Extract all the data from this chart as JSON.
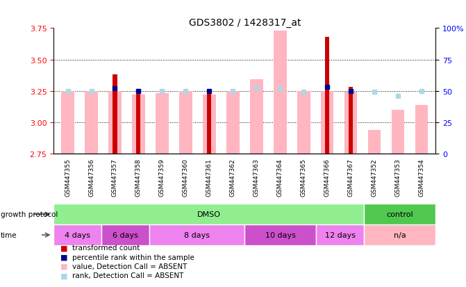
{
  "title": "GDS3802 / 1428317_at",
  "samples": [
    "GSM447355",
    "GSM447356",
    "GSM447357",
    "GSM447358",
    "GSM447359",
    "GSM447360",
    "GSM447361",
    "GSM447362",
    "GSM447363",
    "GSM447364",
    "GSM447365",
    "GSM447366",
    "GSM447367",
    "GSM447352",
    "GSM447353",
    "GSM447354"
  ],
  "ylim_left": [
    2.75,
    3.75
  ],
  "ylim_right": [
    0,
    100
  ],
  "yticks_left": [
    2.75,
    3.0,
    3.25,
    3.5,
    3.75
  ],
  "yticks_right": [
    0,
    25,
    50,
    75,
    100
  ],
  "red_bars": [
    null,
    null,
    3.38,
    3.25,
    null,
    null,
    3.25,
    null,
    null,
    null,
    null,
    3.68,
    3.28,
    null,
    null,
    null
  ],
  "pink_bars": [
    3.25,
    3.25,
    3.25,
    3.22,
    3.23,
    3.25,
    3.22,
    3.25,
    3.34,
    3.73,
    3.25,
    3.25,
    3.24,
    2.94,
    3.1,
    3.14
  ],
  "blue_squares": [
    null,
    null,
    3.27,
    3.25,
    null,
    null,
    3.25,
    null,
    null,
    null,
    null,
    3.28,
    3.25,
    null,
    null,
    null
  ],
  "lightblue_squares": [
    3.25,
    3.25,
    null,
    3.25,
    3.25,
    3.25,
    null,
    3.25,
    3.27,
    3.27,
    3.24,
    null,
    3.25,
    3.24,
    3.21,
    3.25
  ],
  "growth_protocol_groups": [
    {
      "label": "DMSO",
      "start": 0,
      "end": 12,
      "color": "#90EE90"
    },
    {
      "label": "control",
      "start": 13,
      "end": 15,
      "color": "#50C850"
    }
  ],
  "time_groups": [
    {
      "label": "4 days",
      "start": 0,
      "end": 1,
      "color": "#EE82EE"
    },
    {
      "label": "6 days",
      "start": 2,
      "end": 3,
      "color": "#CC50CC"
    },
    {
      "label": "8 days",
      "start": 4,
      "end": 7,
      "color": "#EE82EE"
    },
    {
      "label": "10 days",
      "start": 8,
      "end": 10,
      "color": "#CC50CC"
    },
    {
      "label": "12 days",
      "start": 11,
      "end": 12,
      "color": "#EE82EE"
    },
    {
      "label": "n/a",
      "start": 13,
      "end": 15,
      "color": "#FFB6C1"
    }
  ],
  "legend_items": [
    {
      "label": "transformed count",
      "color": "#CC0000"
    },
    {
      "label": "percentile rank within the sample",
      "color": "#00008B"
    },
    {
      "label": "value, Detection Call = ABSENT",
      "color": "#FFB6C1"
    },
    {
      "label": "rank, Detection Call = ABSENT",
      "color": "#ADD8E6"
    }
  ],
  "base_value": 2.75,
  "pink_bar_width": 0.55,
  "red_bar_width": 0.18
}
